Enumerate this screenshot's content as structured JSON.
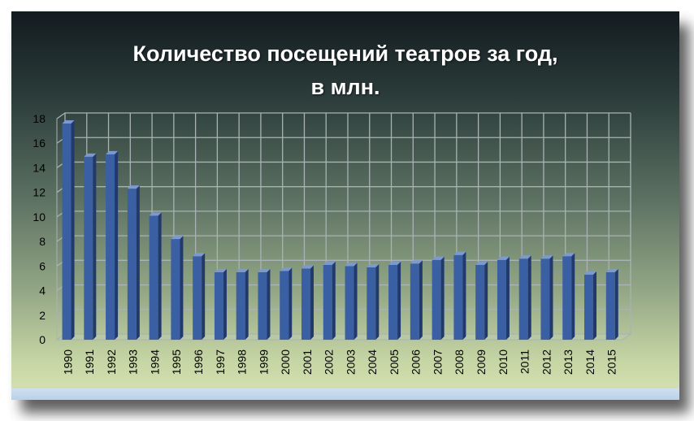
{
  "title_line1": "Количество посещений театров за год,",
  "title_line2": "в млн.",
  "colors": {
    "bar_front": "#3b5fa3",
    "bar_side": "#22396b",
    "bar_top": "#7d9ad0",
    "grid": "#a9b2b5",
    "axis_text": "#000000"
  },
  "chart_data": {
    "type": "bar",
    "categories": [
      "1990",
      "1991",
      "1992",
      "1993",
      "1994",
      "1995",
      "1996",
      "1997",
      "1998",
      "1999",
      "2000",
      "2001",
      "2002",
      "2003",
      "2004",
      "2005",
      "2006",
      "2007",
      "2008",
      "2009",
      "2010",
      "2011",
      "2012",
      "2013",
      "2014",
      "2015"
    ],
    "values": [
      17.6,
      14.9,
      15.1,
      12.3,
      10.1,
      8.2,
      6.8,
      5.5,
      5.5,
      5.5,
      5.6,
      5.8,
      6.1,
      6.0,
      5.9,
      6.1,
      6.2,
      6.5,
      6.9,
      6.1,
      6.5,
      6.6,
      6.6,
      6.8,
      5.3,
      5.5
    ],
    "ylim": [
      0,
      18
    ],
    "yticks": [
      0,
      2,
      4,
      6,
      8,
      10,
      12,
      14,
      16,
      18
    ],
    "grid": true,
    "legend": "none"
  }
}
